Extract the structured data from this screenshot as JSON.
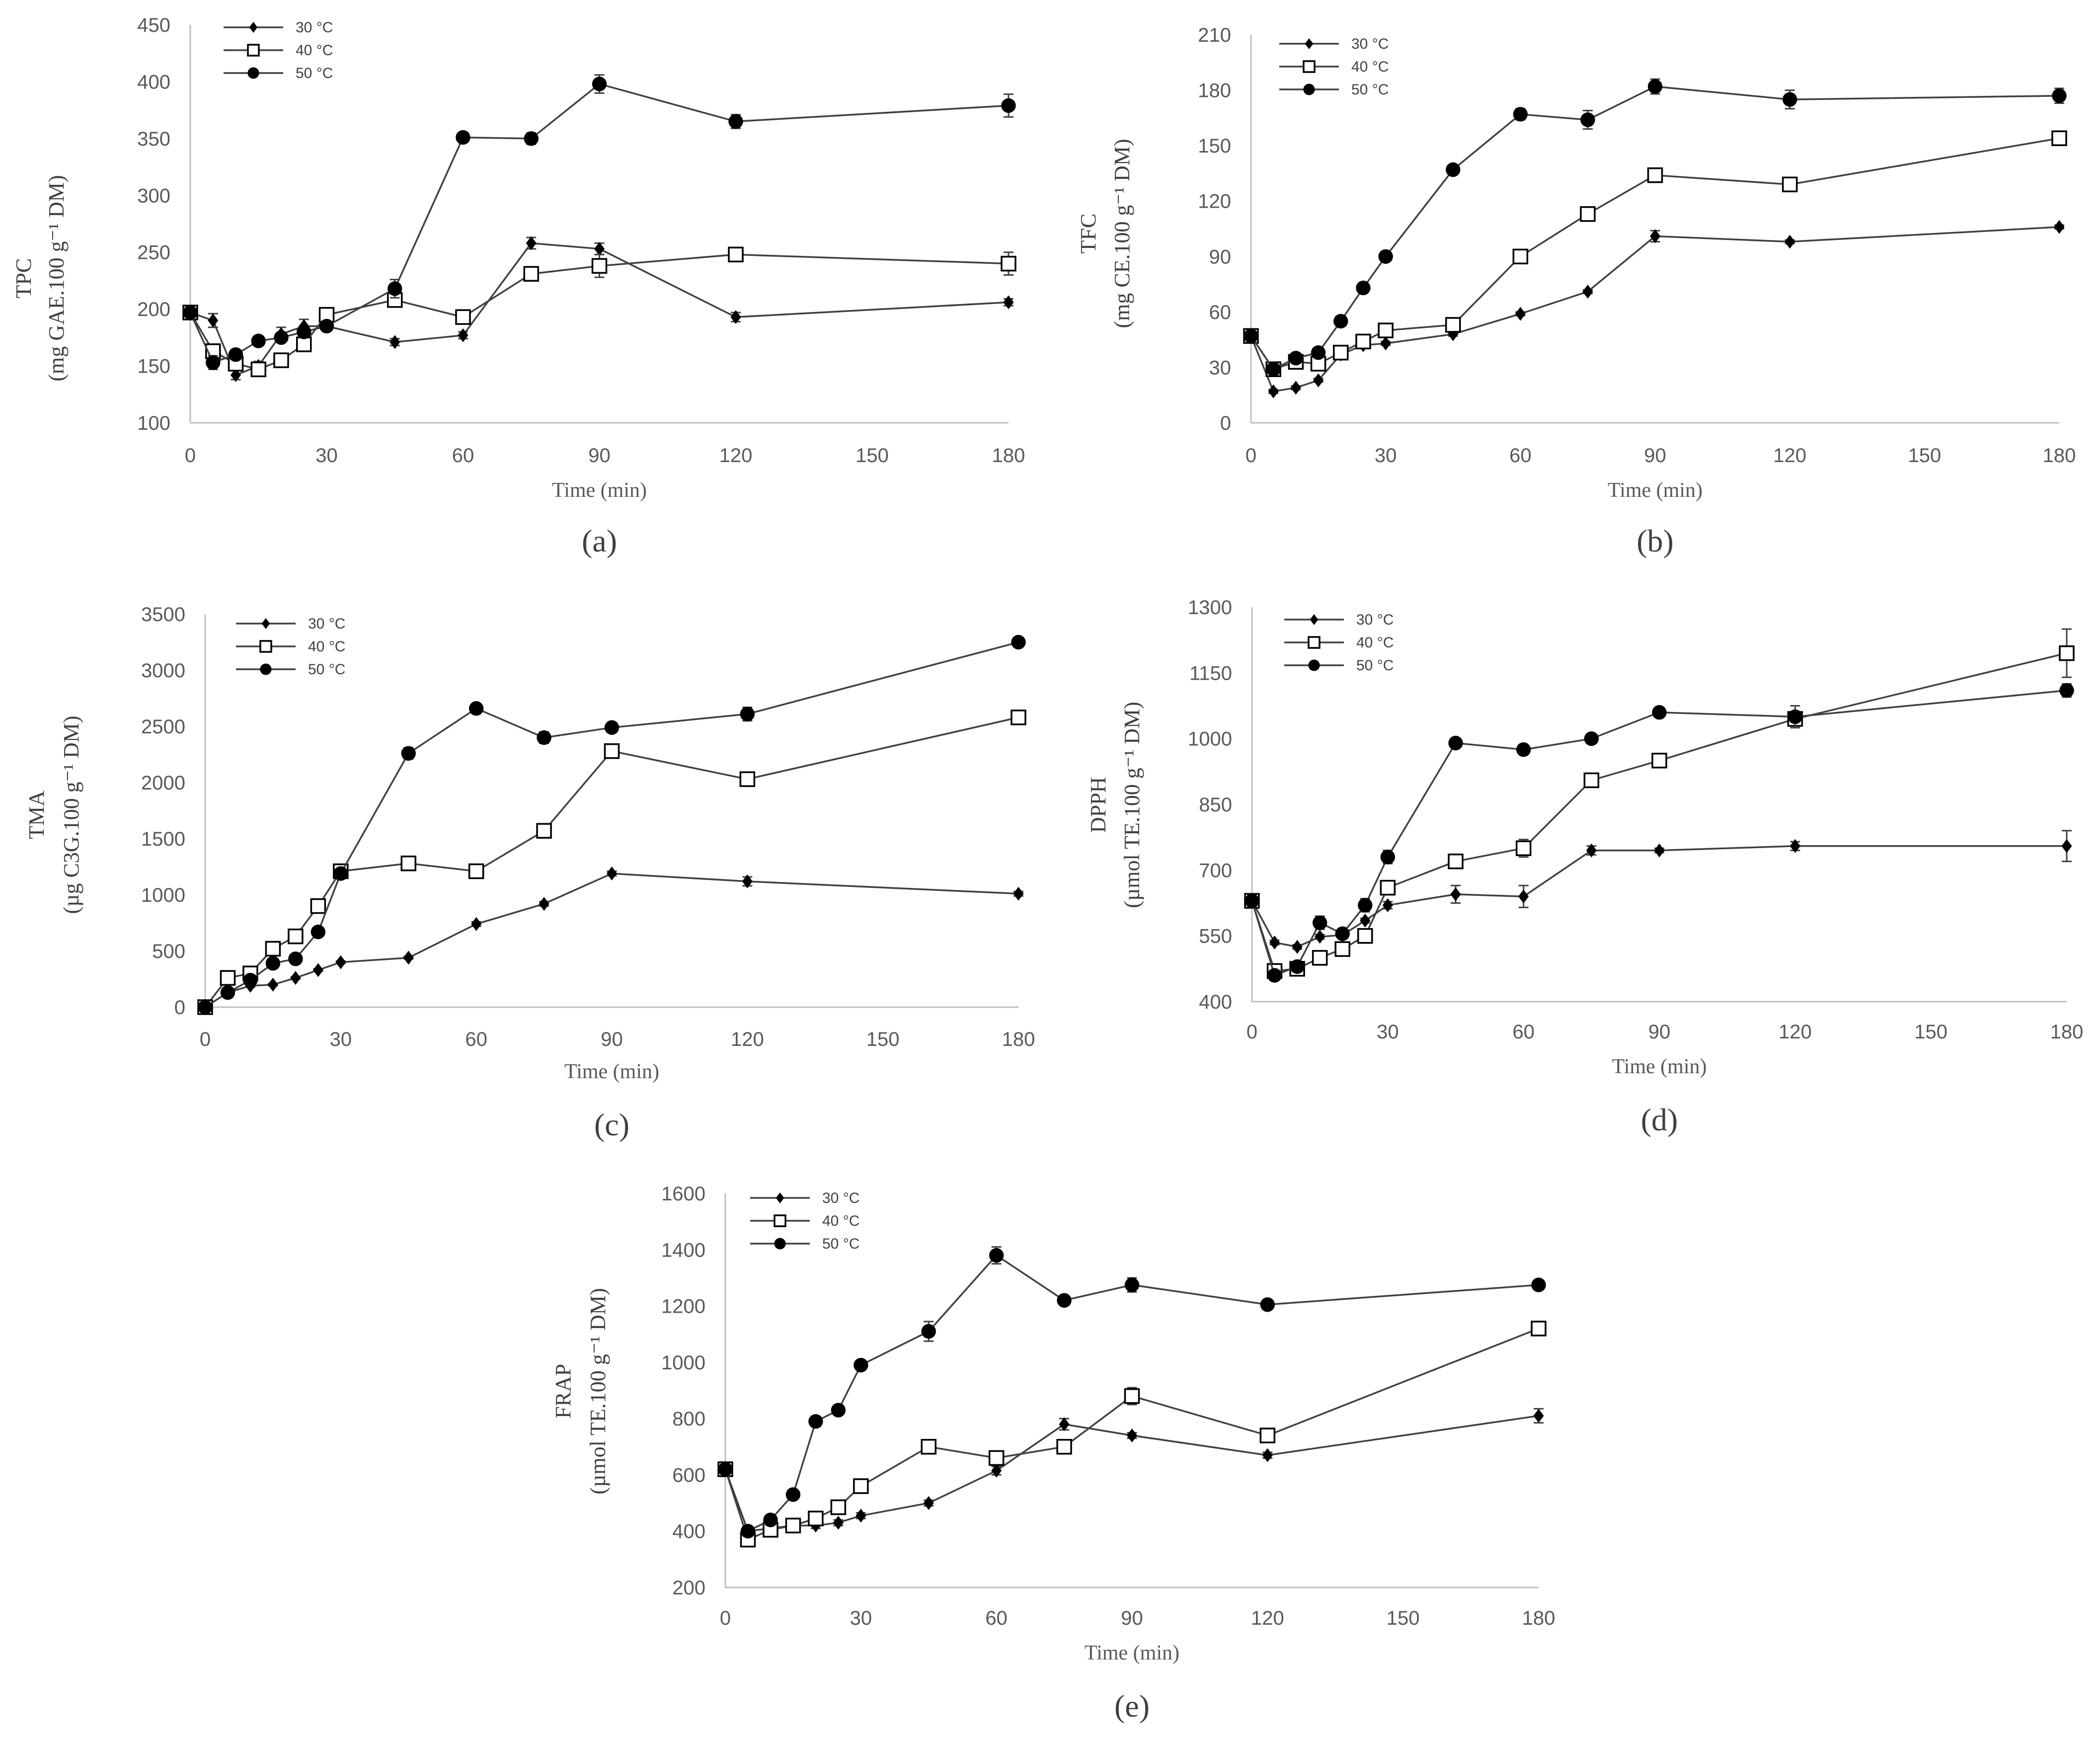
{
  "figure": {
    "legend": [
      "30 °C",
      "40 °C",
      "50 °C"
    ],
    "xlabel": "Time (min)"
  },
  "chart_data": [
    {
      "type": "line",
      "panel": "(a)",
      "ylabel_line1": "TPC",
      "ylabel_line2": "(mg GAE.100 g⁻¹ DM)",
      "xlabel": "Time (min)",
      "xlim": [
        0,
        180
      ],
      "xticks": [
        0,
        30,
        60,
        90,
        120,
        150,
        180
      ],
      "ylim": [
        100,
        450
      ],
      "yticks": [
        100,
        150,
        200,
        250,
        300,
        350,
        400,
        450
      ],
      "x": [
        0,
        5,
        10,
        15,
        20,
        25,
        30,
        45,
        60,
        75,
        90,
        120,
        180
      ],
      "series": [
        {
          "name": "30 °C",
          "marker": "diamond",
          "values": [
            197,
            190,
            142,
            150,
            178,
            185,
            185,
            171,
            177,
            258,
            253,
            193,
            206
          ],
          "err": [
            0,
            6,
            4,
            4,
            6,
            6,
            4,
            3,
            3,
            5,
            5,
            4,
            3
          ]
        },
        {
          "name": "40 °C",
          "marker": "square",
          "values": [
            197,
            163,
            152,
            147,
            155,
            169,
            195,
            208,
            193,
            231,
            238,
            248,
            240
          ],
          "err": [
            0,
            5,
            4,
            4,
            4,
            4,
            4,
            5,
            3,
            5,
            10,
            4,
            10
          ]
        },
        {
          "name": "50 °C",
          "marker": "circle",
          "values": [
            197,
            153,
            160,
            172,
            175,
            180,
            185,
            218,
            351,
            350,
            398,
            365,
            379
          ],
          "err": [
            0,
            6,
            4,
            4,
            4,
            4,
            4,
            8,
            3,
            5,
            8,
            6,
            10
          ]
        }
      ]
    },
    {
      "type": "line",
      "panel": "(b)",
      "ylabel_line1": "TFC",
      "ylabel_line2": "(mg CE.100 g⁻¹ DM)",
      "xlabel": "Time (min)",
      "xlim": [
        0,
        180
      ],
      "xticks": [
        0,
        30,
        60,
        90,
        120,
        150,
        180
      ],
      "ylim": [
        0,
        210
      ],
      "yticks": [
        0,
        30,
        60,
        90,
        120,
        150,
        180,
        210
      ],
      "x": [
        0,
        5,
        10,
        15,
        20,
        25,
        30,
        45,
        60,
        75,
        90,
        120,
        180
      ],
      "series": [
        {
          "name": "30 °C",
          "marker": "diamond",
          "values": [
            47,
            17,
            19,
            23,
            37,
            42,
            43,
            48,
            59,
            71,
            101,
            98,
            106
          ],
          "err": [
            0,
            1,
            1,
            1,
            1,
            1,
            1,
            1,
            1,
            1,
            3,
            1,
            1
          ]
        },
        {
          "name": "40 °C",
          "marker": "square",
          "values": [
            47,
            29,
            33,
            32,
            38,
            44,
            50,
            53,
            90,
            113,
            134,
            129,
            154
          ],
          "err": [
            0,
            1,
            1,
            1,
            1,
            1,
            1,
            1,
            2,
            2,
            2,
            1,
            1
          ]
        },
        {
          "name": "50 °C",
          "marker": "circle",
          "values": [
            47,
            29,
            35,
            38,
            55,
            73,
            90,
            137,
            167,
            164,
            182,
            175,
            177
          ],
          "err": [
            0,
            1,
            1,
            1,
            1,
            1,
            2,
            2,
            3,
            5,
            4,
            5,
            4
          ]
        }
      ]
    },
    {
      "type": "line",
      "panel": "(c)",
      "ylabel_line1": "TMA",
      "ylabel_line2": "(µg C3G.100 g⁻¹ DM)",
      "xlabel": "Time (min)",
      "xlim": [
        0,
        180
      ],
      "xticks": [
        0,
        30,
        60,
        90,
        120,
        150,
        180
      ],
      "ylim": [
        0,
        3500
      ],
      "yticks": [
        0,
        500,
        1000,
        1500,
        2000,
        2500,
        3000,
        3500
      ],
      "x": [
        0,
        5,
        10,
        15,
        20,
        25,
        30,
        45,
        60,
        75,
        90,
        120,
        180
      ],
      "series": [
        {
          "name": "30 °C",
          "marker": "diamond",
          "values": [
            0,
            130,
            190,
            200,
            260,
            330,
            400,
            440,
            740,
            920,
            1190,
            1120,
            1010
          ],
          "err": [
            0,
            10,
            10,
            10,
            10,
            10,
            10,
            10,
            20,
            20,
            20,
            40,
            20
          ]
        },
        {
          "name": "40 °C",
          "marker": "square",
          "values": [
            0,
            260,
            300,
            520,
            630,
            900,
            1210,
            1280,
            1210,
            1570,
            2280,
            2030,
            2580
          ],
          "err": [
            0,
            10,
            10,
            10,
            10,
            10,
            20,
            20,
            20,
            20,
            60,
            20,
            20
          ]
        },
        {
          "name": "50 °C",
          "marker": "circle",
          "values": [
            0,
            130,
            240,
            390,
            430,
            670,
            1190,
            2260,
            2660,
            2400,
            2490,
            2610,
            3250
          ],
          "err": [
            0,
            10,
            10,
            10,
            10,
            10,
            20,
            50,
            20,
            50,
            40,
            60,
            20
          ]
        }
      ]
    },
    {
      "type": "line",
      "panel": "(d)",
      "ylabel_line1": "DPPH",
      "ylabel_line2": "(µmol TE.100 g⁻¹ DM)",
      "xlabel": "Time (min)",
      "xlim": [
        0,
        180
      ],
      "xticks": [
        0,
        30,
        60,
        90,
        120,
        150,
        180
      ],
      "ylim": [
        400,
        1300
      ],
      "yticks": [
        400,
        550,
        700,
        850,
        1000,
        1150,
        1300
      ],
      "x": [
        0,
        5,
        10,
        15,
        20,
        25,
        30,
        45,
        60,
        75,
        90,
        120,
        180
      ],
      "series": [
        {
          "name": "30 °C",
          "marker": "diamond",
          "values": [
            630,
            535,
            525,
            548,
            552,
            585,
            620,
            645,
            640,
            745,
            745,
            755,
            755
          ],
          "err": [
            0,
            5,
            5,
            5,
            5,
            5,
            8,
            20,
            25,
            10,
            5,
            10,
            35
          ]
        },
        {
          "name": "40 °C",
          "marker": "square",
          "values": [
            630,
            470,
            475,
            500,
            520,
            550,
            660,
            720,
            750,
            905,
            950,
            1045,
            1195
          ],
          "err": [
            0,
            10,
            10,
            5,
            5,
            5,
            10,
            5,
            20,
            10,
            5,
            10,
            55
          ]
        },
        {
          "name": "50 °C",
          "marker": "circle",
          "values": [
            630,
            460,
            480,
            580,
            555,
            620,
            730,
            990,
            975,
            1000,
            1060,
            1050,
            1110
          ],
          "err": [
            0,
            10,
            10,
            15,
            10,
            15,
            15,
            5,
            5,
            5,
            5,
            25,
            15
          ]
        }
      ]
    },
    {
      "type": "line",
      "panel": "(e)",
      "ylabel_line1": "FRAP",
      "ylabel_line2": "(µmol TE.100 g⁻¹ DM)",
      "xlabel": "Time (min)",
      "xlim": [
        0,
        180
      ],
      "xticks": [
        0,
        30,
        60,
        90,
        120,
        150,
        180
      ],
      "ylim": [
        200,
        1600
      ],
      "yticks": [
        200,
        400,
        600,
        800,
        1000,
        1200,
        1400,
        1600
      ],
      "x": [
        0,
        5,
        10,
        15,
        20,
        25,
        30,
        45,
        60,
        75,
        90,
        120,
        180
      ],
      "series": [
        {
          "name": "30 °C",
          "marker": "diamond",
          "values": [
            620,
            400,
            410,
            420,
            420,
            430,
            455,
            500,
            615,
            780,
            740,
            670,
            810
          ],
          "err": [
            0,
            10,
            10,
            10,
            10,
            10,
            10,
            10,
            15,
            20,
            10,
            10,
            25
          ]
        },
        {
          "name": "40 °C",
          "marker": "square",
          "values": [
            620,
            370,
            405,
            420,
            445,
            485,
            560,
            700,
            660,
            700,
            880,
            740,
            1120
          ],
          "err": [
            0,
            10,
            10,
            10,
            10,
            10,
            10,
            15,
            10,
            10,
            30,
            10,
            25
          ]
        },
        {
          "name": "50 °C",
          "marker": "circle",
          "values": [
            620,
            400,
            440,
            530,
            790,
            830,
            990,
            1110,
            1380,
            1220,
            1275,
            1205,
            1275
          ],
          "err": [
            0,
            10,
            10,
            10,
            10,
            10,
            10,
            35,
            30,
            10,
            25,
            10,
            10
          ]
        }
      ]
    }
  ]
}
